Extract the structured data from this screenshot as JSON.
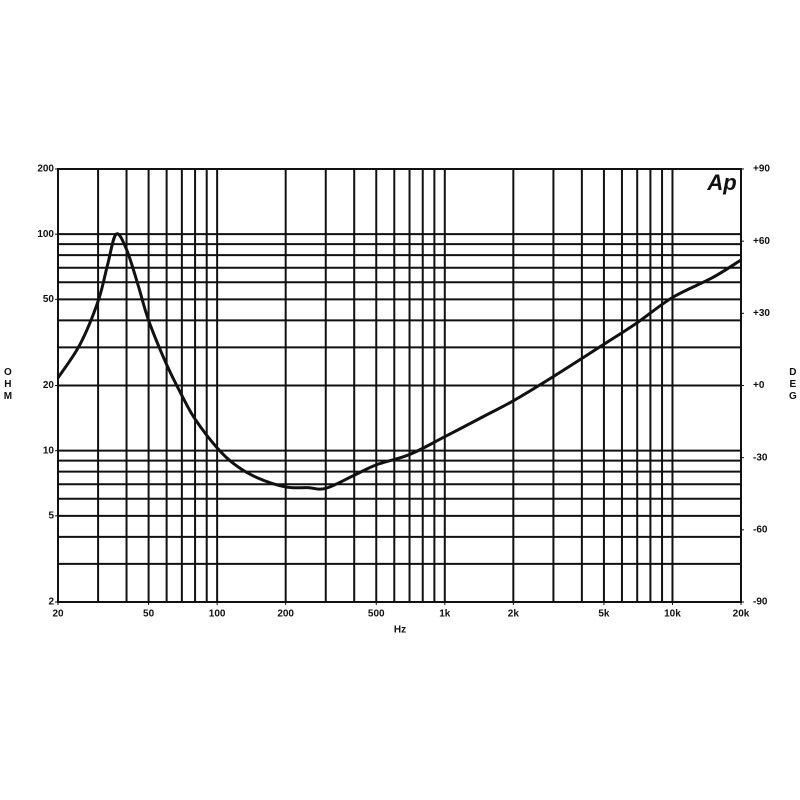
{
  "chart_data": {
    "type": "line",
    "logo": "Ap",
    "xlabel": "Hz",
    "ylabel": "OHM",
    "y2label": "DEG",
    "x_log": true,
    "y_log": true,
    "xlim": [
      20,
      20000
    ],
    "ylim": [
      2,
      200
    ],
    "y2lim": [
      -90,
      90
    ],
    "xticks": [
      20,
      50,
      100,
      200,
      500,
      {
        "value": 1000,
        "label": "1k"
      },
      {
        "value": 2000,
        "label": "2k"
      },
      {
        "value": 5000,
        "label": "5k"
      },
      {
        "value": 10000,
        "label": "10k"
      },
      {
        "value": 20000,
        "label": "20k"
      }
    ],
    "yticks": [
      2,
      5,
      10,
      20,
      50,
      100,
      200
    ],
    "y2ticks": [
      {
        "value": 90,
        "label": "+90"
      },
      {
        "value": 60,
        "label": "+60"
      },
      {
        "value": 30,
        "label": "+30"
      },
      {
        "value": 0,
        "label": "+0"
      },
      -30,
      -60,
      -90
    ],
    "xgrid": [
      20,
      30,
      40,
      50,
      60,
      70,
      80,
      90,
      100,
      200,
      300,
      400,
      500,
      600,
      700,
      800,
      900,
      1000,
      2000,
      3000,
      4000,
      5000,
      6000,
      7000,
      8000,
      9000,
      10000,
      20000
    ],
    "ygrid": [
      2,
      3,
      4,
      5,
      6,
      7,
      8,
      9,
      10,
      20,
      30,
      40,
      50,
      60,
      70,
      80,
      90,
      100,
      200
    ],
    "x": [
      20,
      25,
      30,
      33,
      36,
      40,
      45,
      50,
      60,
      70,
      80,
      100,
      120,
      150,
      200,
      250,
      300,
      400,
      500,
      700,
      1000,
      1500,
      2000,
      3000,
      5000,
      7000,
      10000,
      15000,
      20000
    ],
    "series": [
      {
        "color": "#111111",
        "values": [
          21.7,
          31,
          49,
          72,
          100,
          85,
          58,
          40,
          25,
          18,
          14,
          10.3,
          8.6,
          7.5,
          6.8,
          6.75,
          6.7,
          7.7,
          8.6,
          9.6,
          11.6,
          14.5,
          17,
          22,
          31,
          39,
          51,
          63,
          76
        ]
      }
    ]
  }
}
